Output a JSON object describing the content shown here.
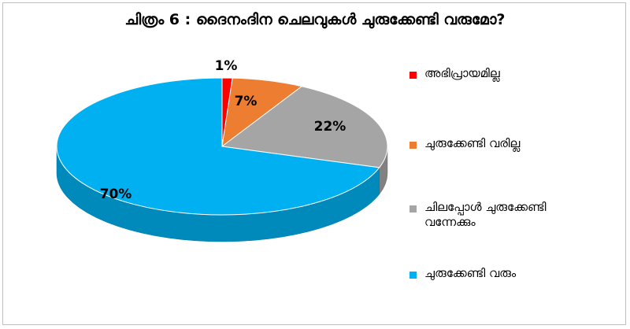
{
  "chart_data": {
    "type": "pie",
    "title": "ചിത്രം 6 : ദൈനംദിന ചെലവുകൾ ചുരുക്കേണ്ടി വരുമോ?",
    "legend_position": "right",
    "style": "3d",
    "slices": [
      {
        "label": "അഭിപ്രായമില്ല",
        "value": 1,
        "display": "1%",
        "color": "#ff0000"
      },
      {
        "label": "ചുരുക്കേണ്ടി വരില്ല",
        "value": 7,
        "display": "7%",
        "color": "#ed7d31"
      },
      {
        "label": "ചിലപ്പോൾ ചുരുക്കേണ്ടി വന്നേക്കും",
        "value": 22,
        "display": "22%",
        "color": "#a5a5a5"
      },
      {
        "label": "ചുരുക്കേണ്ടി വരും",
        "value": 70,
        "display": "70%",
        "color": "#00b0f0"
      }
    ]
  }
}
